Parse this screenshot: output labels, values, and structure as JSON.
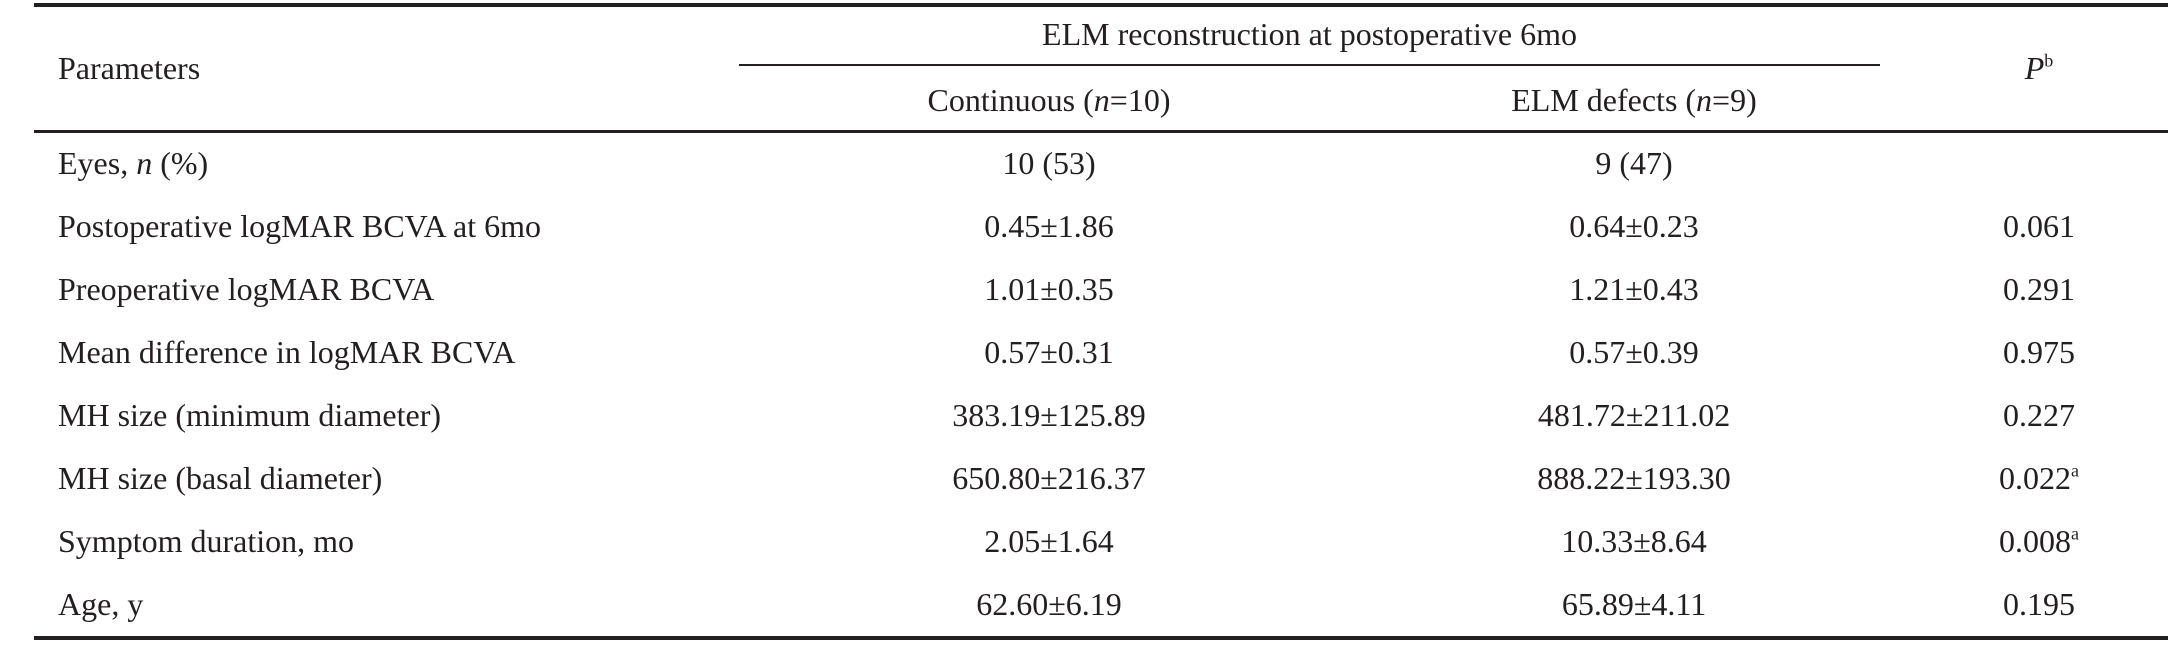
{
  "header": {
    "parameters": "Parameters",
    "span_title": "ELM reconstruction at postoperative 6mo",
    "col_continuous_prefix": "Continuous (",
    "col_continuous_n": "n",
    "col_continuous_suffix": "=10)",
    "col_defects_prefix": "ELM defects (",
    "col_defects_n": "n",
    "col_defects_suffix": "=9)",
    "p_label": "P",
    "p_sup": "b"
  },
  "rows": [
    {
      "label_prefix": "Eyes, ",
      "label_italic": "n",
      "label_suffix": " (%)",
      "continuous": "10 (53)",
      "defects": "9 (47)",
      "p": "",
      "p_sup": ""
    },
    {
      "label": "Postoperative logMAR BCVA at 6mo",
      "continuous": "0.45±1.86",
      "defects": "0.64±0.23",
      "p": "0.061",
      "p_sup": ""
    },
    {
      "label": "Preoperative logMAR BCVA",
      "continuous": "1.01±0.35",
      "defects": "1.21±0.43",
      "p": "0.291",
      "p_sup": ""
    },
    {
      "label": "Mean difference in logMAR BCVA",
      "continuous": "0.57±0.31",
      "defects": "0.57±0.39",
      "p": "0.975",
      "p_sup": ""
    },
    {
      "label": "MH size (minimum diameter)",
      "continuous": "383.19±125.89",
      "defects": "481.72±211.02",
      "p": "0.227",
      "p_sup": ""
    },
    {
      "label": "MH size (basal diameter)",
      "continuous": "650.80±216.37",
      "defects": "888.22±193.30",
      "p": "0.022",
      "p_sup": "a"
    },
    {
      "label": "Symptom duration, mo",
      "continuous": "2.05±1.64",
      "defects": "10.33±8.64",
      "p": "0.008",
      "p_sup": "a"
    },
    {
      "label": "Age, y",
      "continuous": "62.60±6.19",
      "defects": "65.89±4.11",
      "p": "0.195",
      "p_sup": ""
    }
  ]
}
